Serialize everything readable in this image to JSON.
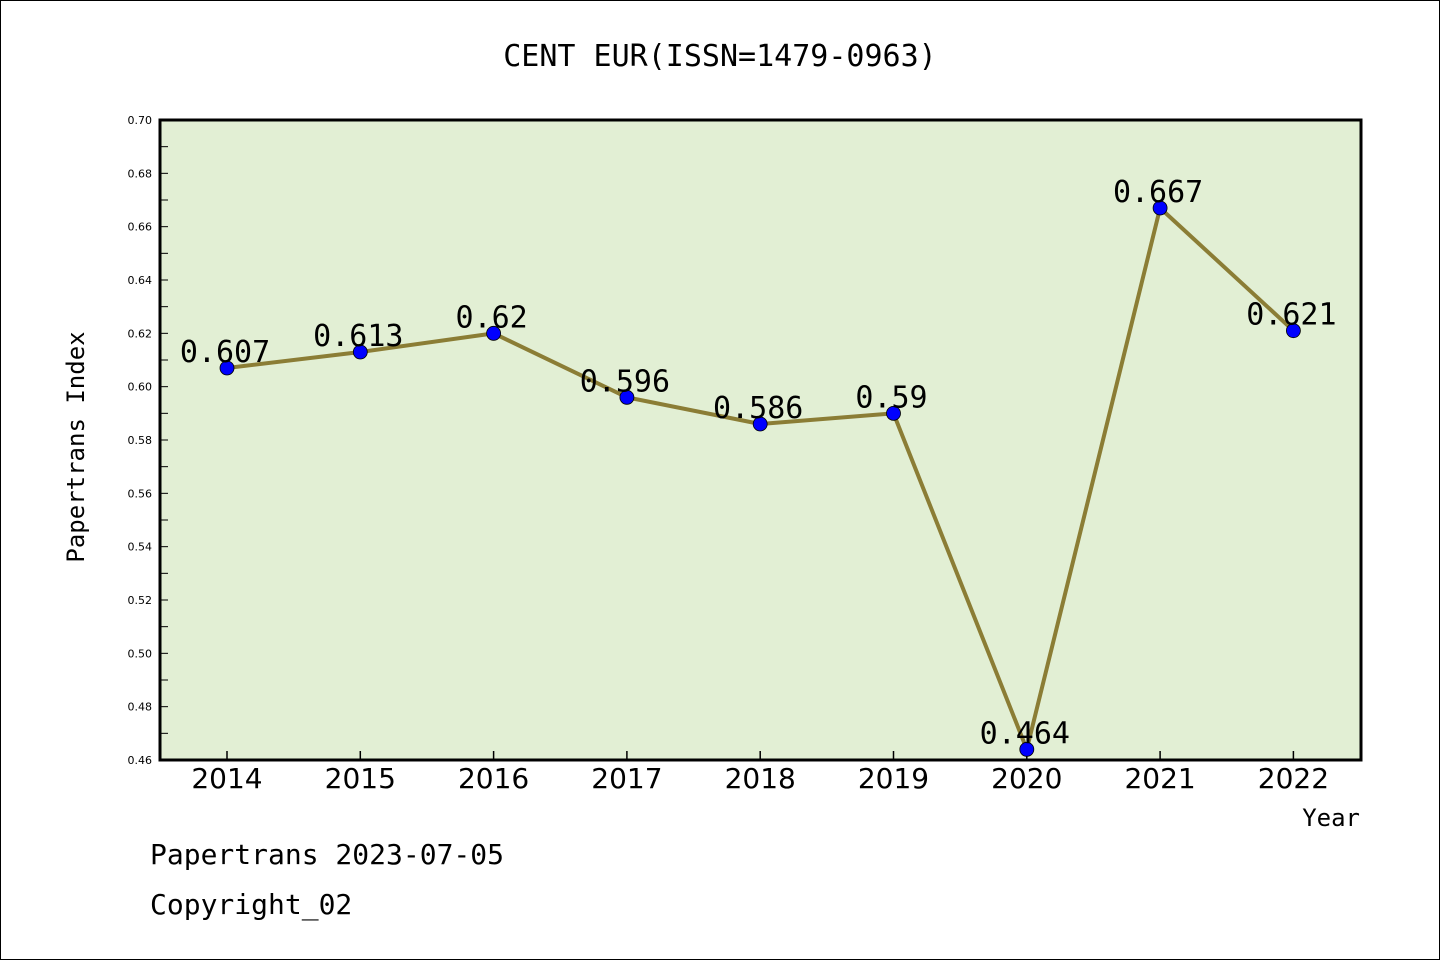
{
  "chart_data": {
    "type": "line",
    "title": "CENT EUR(ISSN=1479-0963)",
    "xlabel": "Year",
    "ylabel": "Papertrans Index",
    "categories": [
      "2014",
      "2015",
      "2016",
      "2017",
      "2018",
      "2019",
      "2020",
      "2021",
      "2022"
    ],
    "values": [
      0.607,
      0.613,
      0.62,
      0.596,
      0.586,
      0.59,
      0.464,
      0.667,
      0.621
    ],
    "data_labels": [
      "0.607",
      "0.613",
      "0.62",
      "0.596",
      "0.586",
      "0.59",
      "0.464",
      "0.667",
      "0.621"
    ],
    "ylim": [
      0.46,
      0.7
    ],
    "yticks": [
      "0.46",
      "0.48",
      "0.50",
      "0.52",
      "0.54",
      "0.56",
      "0.58",
      "0.60",
      "0.62",
      "0.64",
      "0.66",
      "0.68",
      "0.70"
    ],
    "grid": false,
    "colors": {
      "plot_background": "#e2efd4",
      "line": "#8b7d35",
      "marker": "#0000ff"
    }
  },
  "footer": {
    "line1": "Papertrans 2023-07-05",
    "line2": "Copyright_02"
  }
}
